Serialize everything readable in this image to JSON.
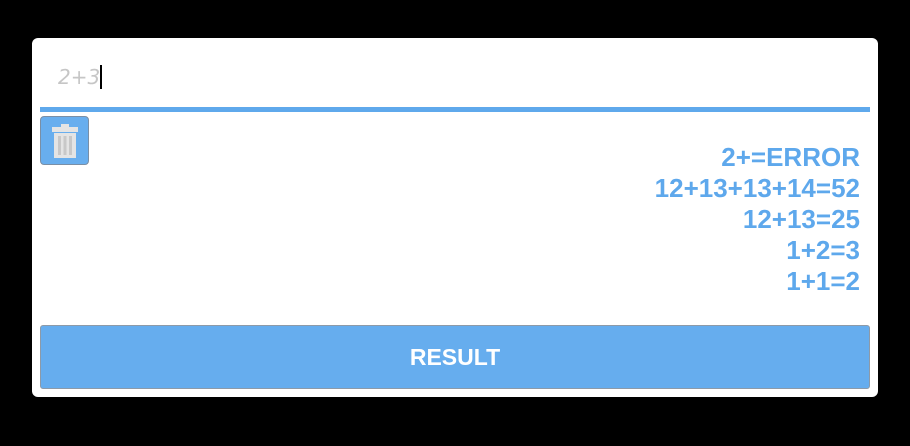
{
  "input": {
    "value": "2+3"
  },
  "trash": {
    "icon": "trash-icon"
  },
  "history": [
    "2+=ERROR",
    "12+13+13+14=52",
    "12+13=25",
    "1+2=3",
    "1+1=2"
  ],
  "result_button": {
    "label": "RESULT"
  },
  "colors": {
    "accent": "#5fa9ec",
    "button": "#66adee",
    "background": "#000000",
    "panel": "#ffffff",
    "input_text": "#c6c6c6"
  }
}
